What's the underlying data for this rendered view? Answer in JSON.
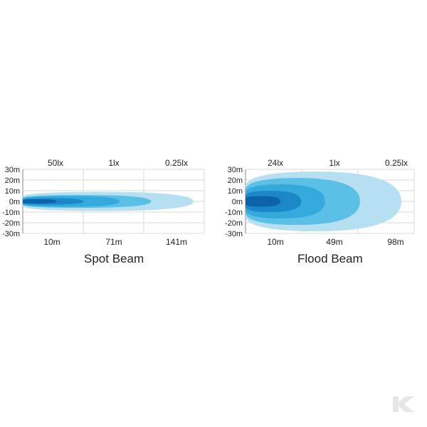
{
  "chart_data": [
    {
      "type": "area",
      "title": "Spot Beam",
      "y_ticks": [
        "30m",
        "20m",
        "10m",
        "0m",
        "-10m",
        "-20m",
        "-30m"
      ],
      "ylim": [
        -30,
        30
      ],
      "top_labels": [
        "50lx",
        "1lx",
        "0.25lx"
      ],
      "bottom_labels": [
        "10m",
        "71m",
        "141m"
      ],
      "grid": true,
      "series": [
        {
          "value": "0.25lx",
          "reach_m": 141,
          "half_width_m": 9,
          "color": "#b7dff2"
        },
        {
          "value": "1lx",
          "reach_m": 106,
          "half_width_m": 6,
          "color": "#5cbfe6"
        },
        {
          "value": "",
          "reach_m": 80,
          "half_width_m": 5,
          "color": "#33a9dc"
        },
        {
          "value": "",
          "reach_m": 50,
          "half_width_m": 3,
          "color": "#1b87c9"
        },
        {
          "value": "50lx",
          "reach_m": 28,
          "half_width_m": 2,
          "color": "#0d63a8"
        }
      ]
    },
    {
      "type": "area",
      "title": "Flood Beam",
      "y_ticks": [
        "30m",
        "20m",
        "10m",
        "0m",
        "-10m",
        "-20m",
        "-30m"
      ],
      "ylim": [
        -30,
        30
      ],
      "top_labels": [
        "24lx",
        "1lx",
        "0.25lx"
      ],
      "bottom_labels": [
        "10m",
        "49m",
        "98m"
      ],
      "grid": true,
      "series": [
        {
          "value": "0.25lx",
          "reach_m": 98,
          "half_width_m": 28,
          "color": "#b7dff2"
        },
        {
          "value": "1lx",
          "reach_m": 72,
          "half_width_m": 22,
          "color": "#5cbfe6"
        },
        {
          "value": "",
          "reach_m": 50,
          "half_width_m": 16,
          "color": "#33a9dc"
        },
        {
          "value": "",
          "reach_m": 35,
          "half_width_m": 10,
          "color": "#1b87c9"
        },
        {
          "value": "24lx",
          "reach_m": 22,
          "half_width_m": 5,
          "color": "#0d63a8"
        }
      ]
    }
  ],
  "colors": {
    "grid": "#d8d8d8",
    "axis": "#888888",
    "logo": "#e6e6e6"
  },
  "logo_icon": "k-logo-icon"
}
